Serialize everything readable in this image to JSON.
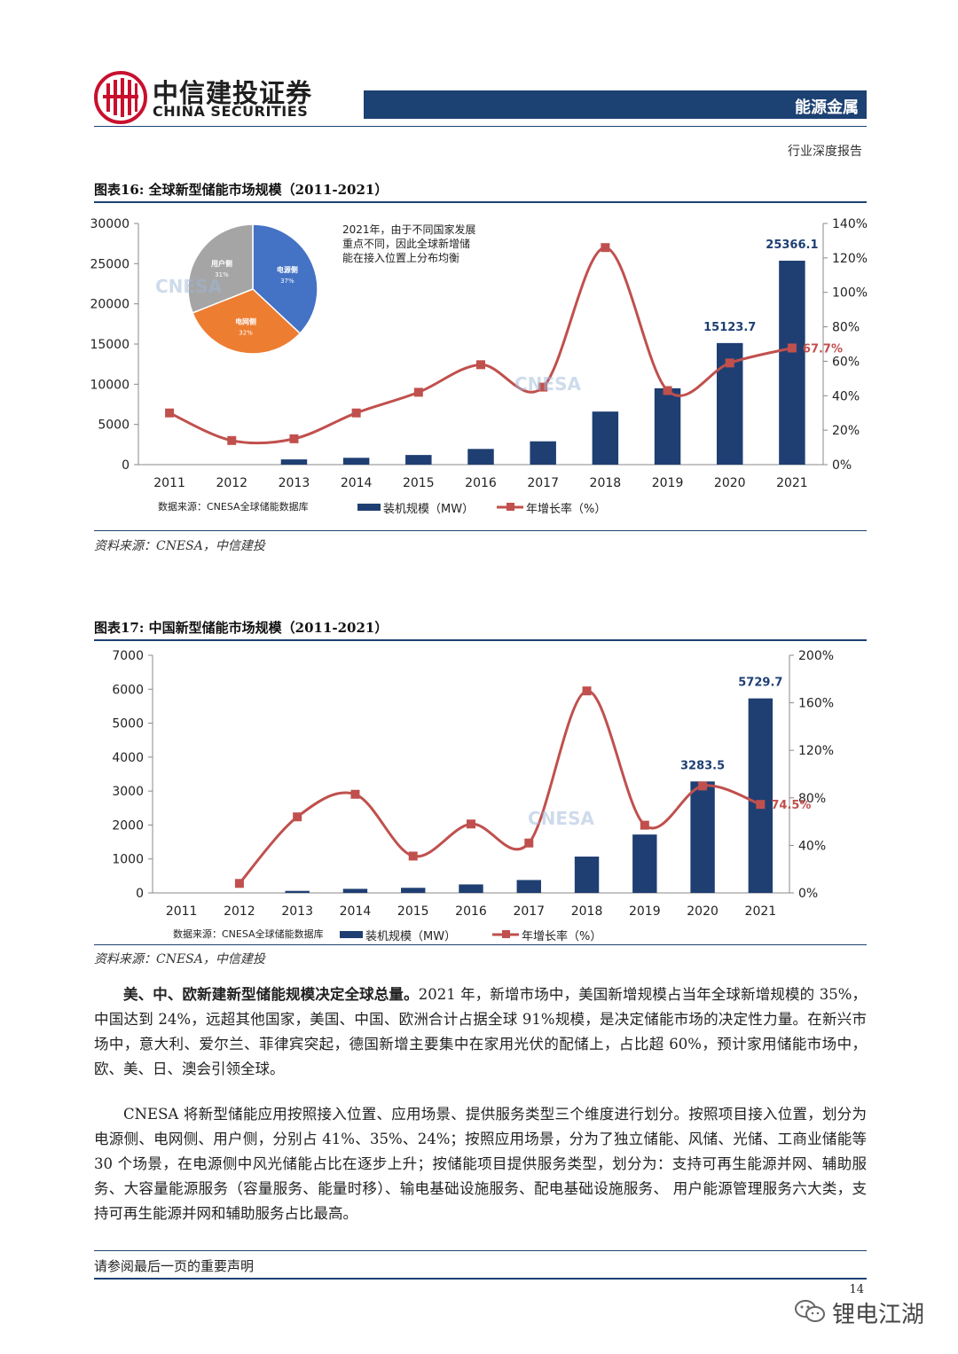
{
  "header": {
    "brand_cn": "中信建投证券",
    "brand_en": "CHINA SECURITIES",
    "section": "能源金属",
    "report_type": "行业深度报告",
    "accent": "#1c4173",
    "logo_color": "#c8102e"
  },
  "figure16": {
    "title": "图表16:   全球新型储能市场规模（2011-2021）",
    "source_inner": "数据来源：CNESA全球储能数据库",
    "source": "资料来源：CNESA，中信建投",
    "annotation_lines": [
      "2021年，由于不同国家发展",
      "重点不同，因此全球新增储",
      "能在接入位置上分布均衡"
    ],
    "watermark": "CNESA"
  },
  "figure17": {
    "title": "图表17:   中国新型储能市场规模（2011-2021）",
    "source_inner": "数据来源：CNESA全球储能数据库",
    "source": "资料来源：CNESA，中信建投",
    "watermark": "CNESA"
  },
  "chart_data": [
    {
      "type": "bar",
      "categories": [
        "2011",
        "2012",
        "2013",
        "2014",
        "2015",
        "2016",
        "2017",
        "2018",
        "2019",
        "2020",
        "2021"
      ],
      "series": [
        {
          "name": "装机规模（MW）",
          "type": "bar",
          "axis": "left",
          "values": [
            0,
            0,
            650,
            850,
            1200,
            1950,
            2900,
            6600,
            9500,
            15123.7,
            25366.1
          ]
        },
        {
          "name": "年增长率（%）",
          "type": "line",
          "axis": "right",
          "values": [
            30,
            14,
            15,
            30,
            42,
            58,
            45,
            126,
            43,
            59,
            67.7
          ]
        }
      ],
      "data_labels": [
        "15123.7",
        "25366.1",
        "67.7%"
      ],
      "ylim_left": [
        0,
        30000
      ],
      "yticks_left": [
        "0",
        "5000",
        "10000",
        "15000",
        "20000",
        "25000",
        "30000"
      ],
      "ylim_right": [
        0,
        140
      ],
      "yticks_right": [
        "0%",
        "20%",
        "40%",
        "60%",
        "80%",
        "100%",
        "120%",
        "140%"
      ],
      "bar_color": "#1f3f73",
      "line_color": "#c0504d",
      "legend_position": "bottom",
      "inset_pie": {
        "type": "pie",
        "slices": [
          {
            "label": "电源侧",
            "pct": "37%",
            "value": 37,
            "color": "#4472c4"
          },
          {
            "label": "电网侧",
            "pct": "32%",
            "value": 32,
            "color": "#ed7d31"
          },
          {
            "label": "用户侧",
            "pct": "31%",
            "value": 31,
            "color": "#a5a5a5"
          }
        ]
      }
    },
    {
      "type": "bar",
      "categories": [
        "2011",
        "2012",
        "2013",
        "2014",
        "2015",
        "2016",
        "2017",
        "2018",
        "2019",
        "2020",
        "2021"
      ],
      "series": [
        {
          "name": "装机规模（MW）",
          "type": "bar",
          "axis": "left",
          "values": [
            0,
            0,
            60,
            120,
            150,
            250,
            380,
            1070,
            1720,
            3283.5,
            5729.7
          ]
        },
        {
          "name": "年增长率（%）",
          "type": "line",
          "axis": "right",
          "values": [
            null,
            8,
            64,
            83,
            31,
            58,
            42,
            170,
            57,
            90,
            74.5
          ]
        }
      ],
      "data_labels": [
        "3283.5",
        "5729.7",
        "74.5%"
      ],
      "ylim_left": [
        0,
        7000
      ],
      "yticks_left": [
        "0",
        "1000",
        "2000",
        "3000",
        "4000",
        "5000",
        "6000",
        "7000"
      ],
      "ylim_right": [
        0,
        200
      ],
      "yticks_right": [
        "0%",
        "40%",
        "80%",
        "120%",
        "160%",
        "200%"
      ],
      "bar_color": "#1f3f73",
      "line_color": "#c0504d",
      "legend_position": "bottom"
    }
  ],
  "body": {
    "p1_bold": "美、中、欧新建新型储能规模决定全球总量。",
    "p1": "2021 年，新增市场中，美国新增规模占当年全球新增规模的 35%，中国达到 24%，远超其他国家，美国、中国、欧洲合计占据全球 91%规模，是决定储能市场的决定性力量。在新兴市场中，意大利、爱尔兰、菲律宾突起，德国新增主要集中在家用光伏的配储上，占比超 60%，预计家用储能市场中，欧、美、日、澳会引领全球。",
    "p2": "CNESA 将新型储能应用按照接入位置、应用场景、提供服务类型三个维度进行划分。按照项目接入位置，划分为电源侧、电网侧、用户侧，分别占 41%、35%、24%；按照应用场景，分为了独立储能、风储、光储、工商业储能等 30 个场景，在电源侧中风光储能占比在逐步上升；按储能项目提供服务类型，划分为：支持可再生能源并网、辅助服务、大容量能源服务（容量服务、能量时移）、输电基础设施服务、配电基础设施服务、 用户能源管理服务六大类，支持可再生能源并网和辅助服务占比最高。"
  },
  "footer": {
    "note": "请参阅最后一页的重要声明",
    "page": "14",
    "wechat": "锂电江湖"
  }
}
